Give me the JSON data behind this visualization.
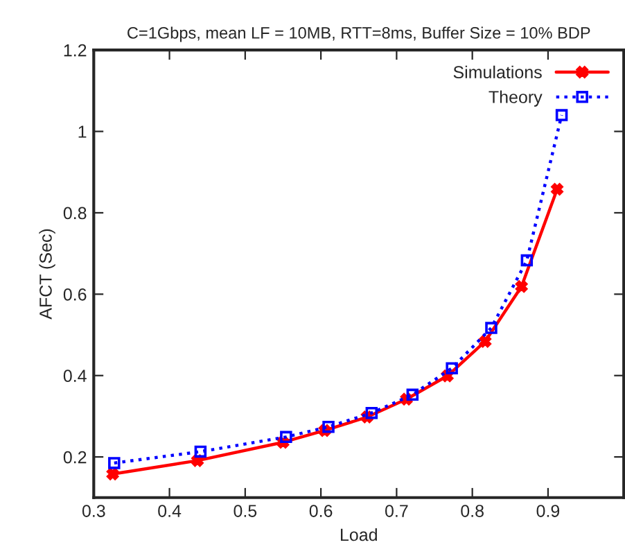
{
  "chart_data": {
    "type": "line",
    "title": "C=1Gbps, mean LF = 10MB, RTT=8ms, Buffer Size = 10% BDP",
    "xlabel": "Load",
    "ylabel": "AFCT (Sec)",
    "xlim": [
      0.3,
      1.0
    ],
    "xticks": [
      0.3,
      0.4,
      0.5,
      0.6,
      0.7,
      0.8,
      0.9,
      {
        "value": 1.0,
        "label": null
      }
    ],
    "ylim": [
      0.1,
      1.2
    ],
    "yticks": [
      0.2,
      0.4,
      0.6,
      0.8,
      1,
      1.2
    ],
    "grid": false,
    "legend": "top right",
    "series": [
      {
        "name": "Simulations",
        "color": "#ff0000",
        "marker": "cross",
        "line_style": "solid",
        "x": [
          0.325,
          0.437,
          0.55,
          0.605,
          0.661,
          0.713,
          0.767,
          0.817,
          0.865,
          0.912
        ],
        "values": [
          0.158,
          0.191,
          0.236,
          0.265,
          0.298,
          0.342,
          0.399,
          0.484,
          0.619,
          0.858
        ]
      },
      {
        "name": "Theory",
        "color": "#0000ff",
        "marker": "square",
        "line_style": "dotted",
        "x": [
          0.327,
          0.441,
          0.554,
          0.61,
          0.667,
          0.721,
          0.773,
          0.825,
          0.872,
          0.918
        ],
        "values": [
          0.185,
          0.213,
          0.249,
          0.274,
          0.308,
          0.353,
          0.418,
          0.517,
          0.683,
          1.04
        ]
      }
    ]
  }
}
